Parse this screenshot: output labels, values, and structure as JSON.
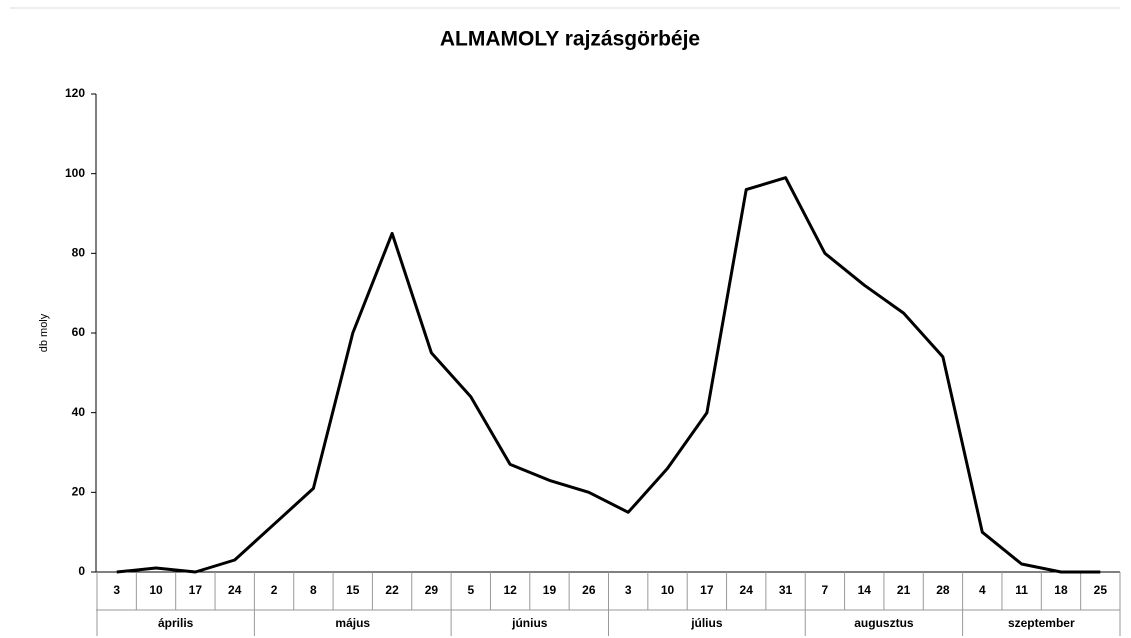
{
  "chart_data": {
    "type": "line",
    "title": "ALMAMOLY rajzásgörbéje",
    "y_label": "db moly",
    "months": [
      {
        "name": "április",
        "days": [
          "3",
          "10",
          "17",
          "24"
        ]
      },
      {
        "name": "május",
        "days": [
          "2",
          "8",
          "15",
          "22",
          "29"
        ]
      },
      {
        "name": "június",
        "days": [
          "5",
          "12",
          "19",
          "26"
        ]
      },
      {
        "name": "július",
        "days": [
          "3",
          "10",
          "17",
          "24",
          "31"
        ]
      },
      {
        "name": "augusztus",
        "days": [
          "7",
          "14",
          "21",
          "28"
        ]
      },
      {
        "name": "szeptember",
        "days": [
          "4",
          "11",
          "18",
          "25"
        ]
      }
    ],
    "values": [
      0,
      1,
      0,
      3,
      12,
      21,
      60,
      85,
      55,
      44,
      27,
      23,
      20,
      15,
      26,
      40,
      96,
      99,
      80,
      72,
      65,
      54,
      10,
      2,
      0,
      0
    ],
    "color": "#000000",
    "ylim": [
      0,
      120
    ],
    "yticks": [
      0,
      20,
      40,
      60,
      80,
      100,
      120
    ],
    "grid": false
  }
}
